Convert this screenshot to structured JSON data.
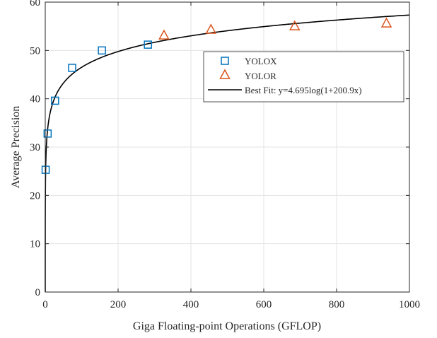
{
  "chart_data": {
    "type": "scatter",
    "title": "",
    "xlabel": "Giga Floating-point Operations (GFLOP)",
    "ylabel": "Average Precision",
    "xlim": [
      0,
      1000
    ],
    "ylim": [
      0,
      60
    ],
    "xticks": [
      0,
      200,
      400,
      600,
      800,
      1000
    ],
    "yticks": [
      0,
      10,
      20,
      30,
      40,
      50,
      60
    ],
    "xtick_labels": [
      "0",
      "200",
      "400",
      "600",
      "800",
      "1000"
    ],
    "ytick_labels": [
      "0",
      "10",
      "20",
      "30",
      "40",
      "50",
      "60"
    ],
    "grid": true,
    "legend_position": "top-right",
    "series": [
      {
        "name": "YOLOX",
        "marker": "square",
        "color": "#0072BD",
        "points": [
          {
            "x": 1.1,
            "y": 25.3
          },
          {
            "x": 6.5,
            "y": 32.8
          },
          {
            "x": 26.8,
            "y": 39.6
          },
          {
            "x": 73.8,
            "y": 46.4
          },
          {
            "x": 155.6,
            "y": 50.0
          },
          {
            "x": 281.9,
            "y": 51.2
          }
        ]
      },
      {
        "name": "YOLOR",
        "marker": "triangle",
        "color": "#D95319",
        "points": [
          {
            "x": 326,
            "y": 53.1
          },
          {
            "x": 455,
            "y": 54.3
          },
          {
            "x": 685,
            "y": 55.0
          },
          {
            "x": 937,
            "y": 55.6
          }
        ]
      },
      {
        "name": "Best Fit: y=4.695log(1+200.9x)",
        "type": "line",
        "color": "#000000",
        "fit": {
          "a": 4.695,
          "b": 200.9
        }
      }
    ]
  }
}
